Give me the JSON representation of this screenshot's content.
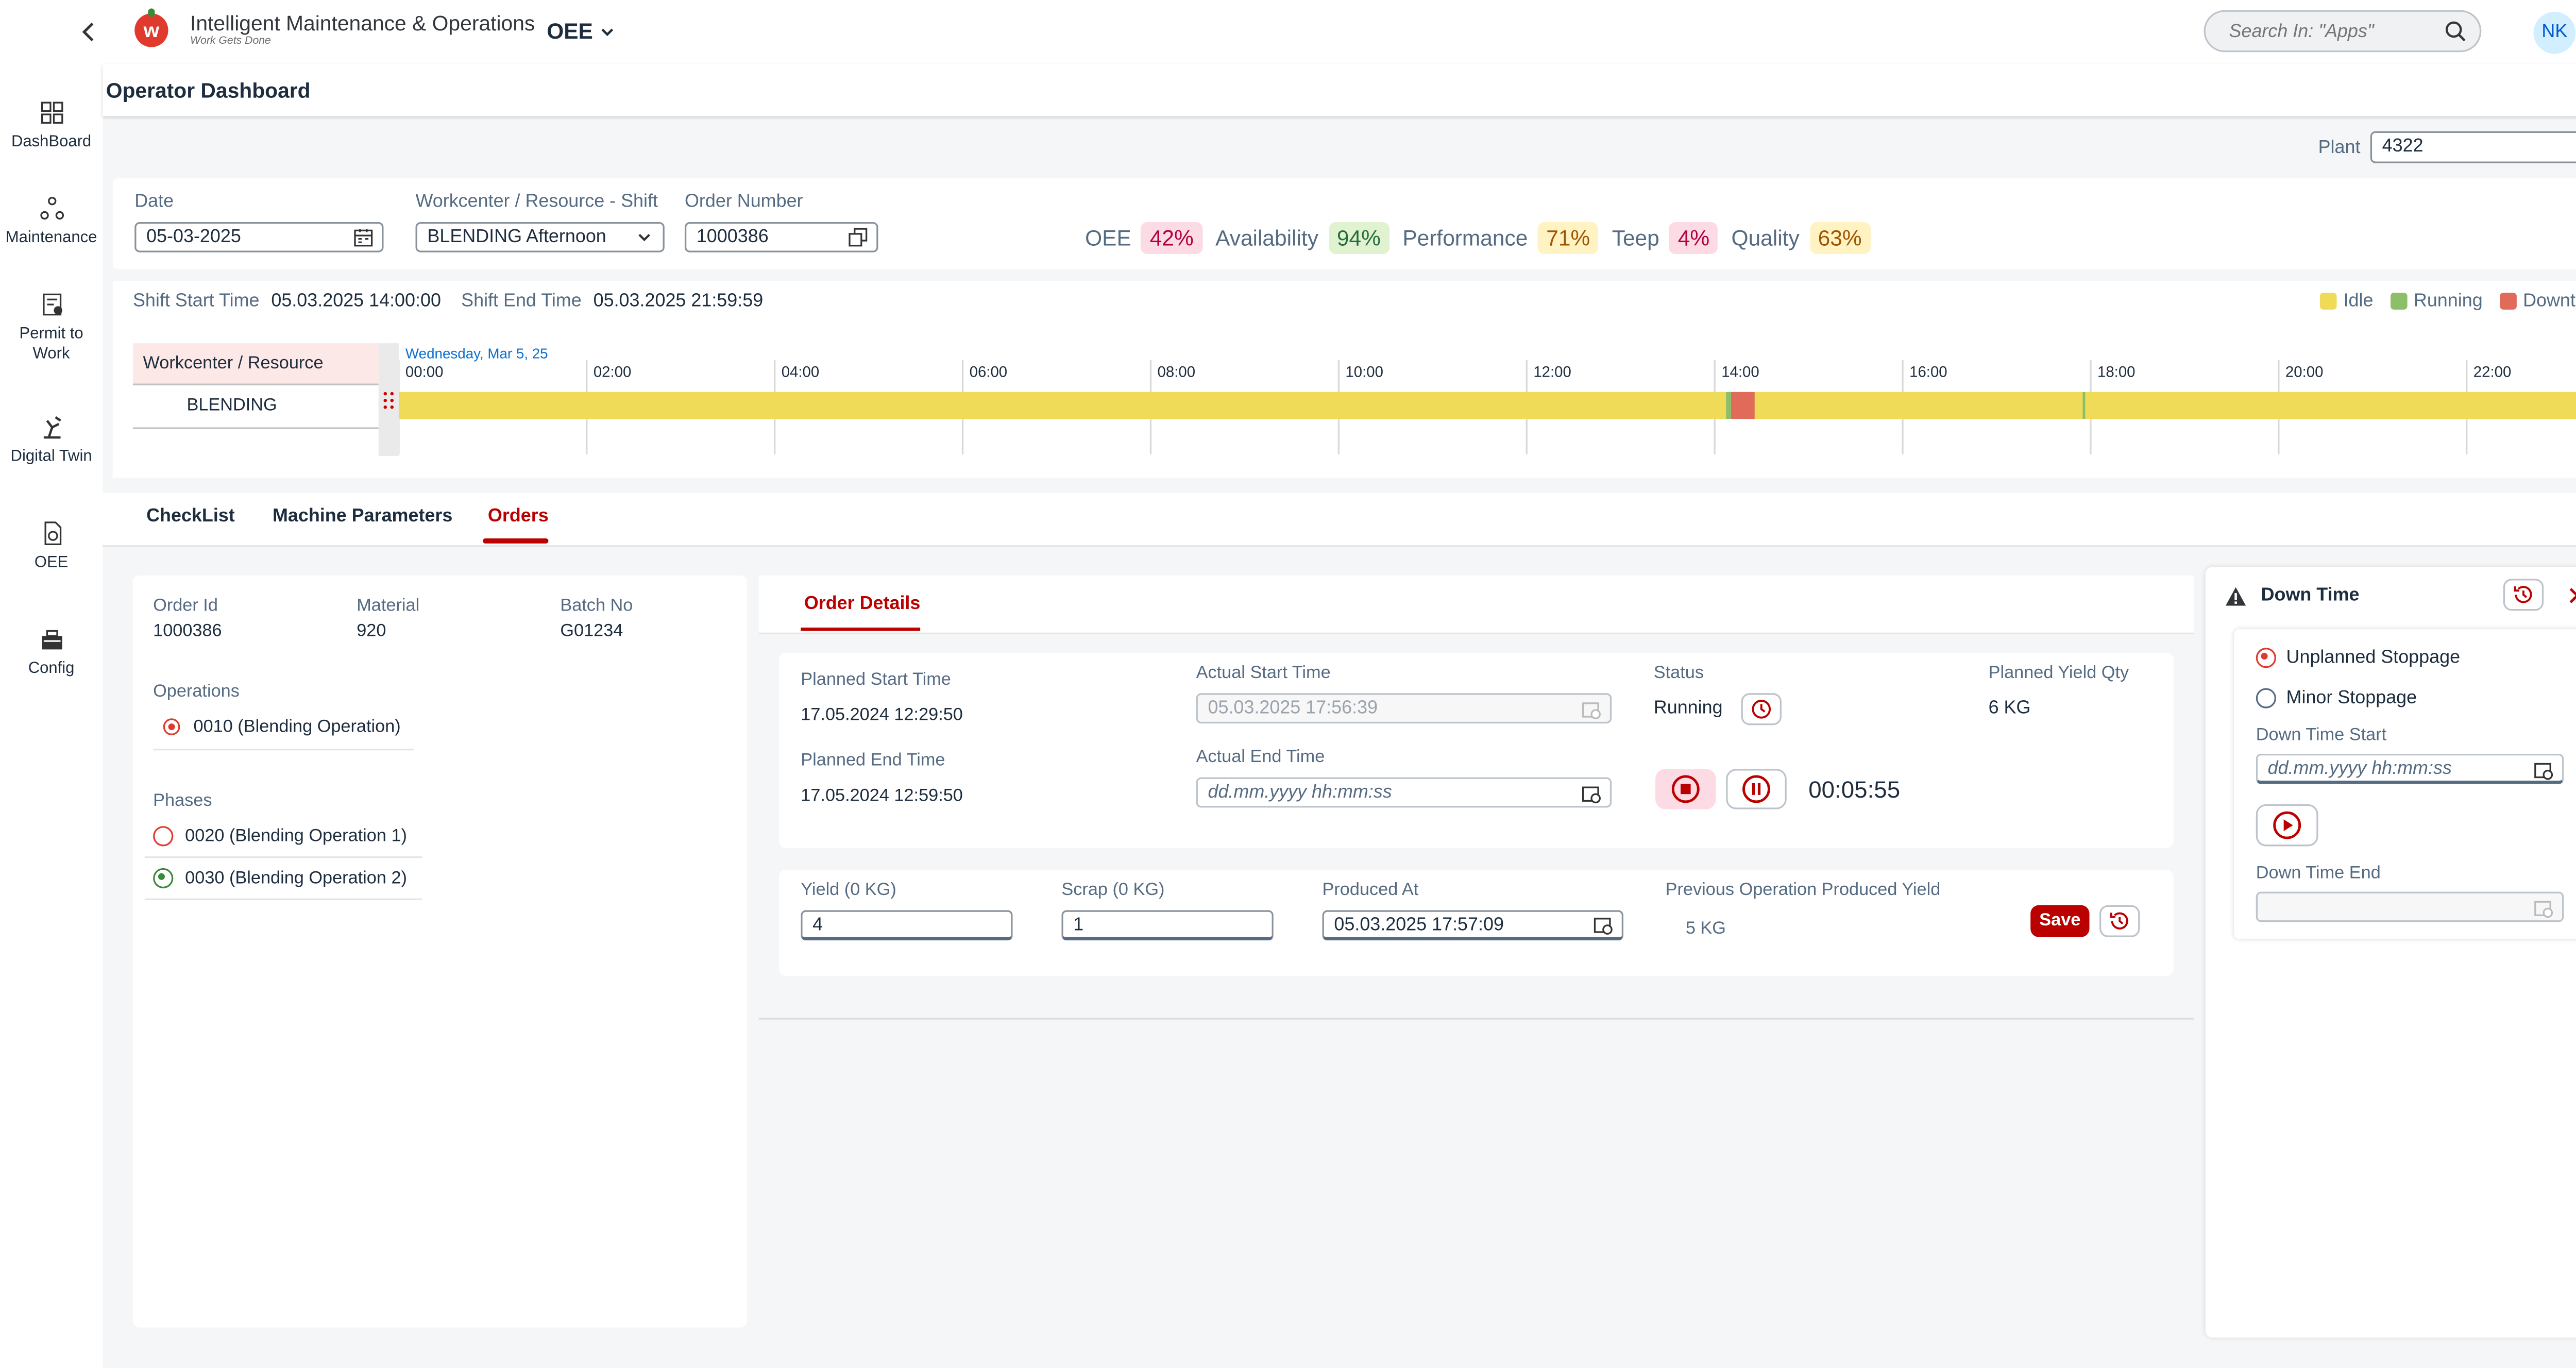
{
  "app": {
    "title": "Intelligent Maintenance & Operations",
    "subtitle": "Work Gets Done",
    "logo_letter": "w",
    "module": "OEE",
    "search_placeholder": "Search In: \"Apps\"",
    "user_initials": "NK"
  },
  "sidebar": {
    "items": [
      {
        "label": "DashBoard",
        "icon": "dashboard-icon"
      },
      {
        "label": "Maintenance",
        "icon": "maintenance-icon"
      },
      {
        "label": "Permit to Work",
        "icon": "permit-icon"
      },
      {
        "label": "Digital Twin",
        "icon": "digital-twin-icon"
      },
      {
        "label": "OEE",
        "icon": "oee-icon"
      },
      {
        "label": "Config",
        "icon": "config-icon"
      }
    ]
  },
  "page": {
    "title": "Operator Dashboard",
    "plant_label": "Plant",
    "plant_value": "4322"
  },
  "filters": {
    "date_label": "Date",
    "date_value": "05-03-2025",
    "workcenter_label": "Workcenter / Resource - Shift",
    "workcenter_value": "BLENDING Afternoon",
    "order_label": "Order Number",
    "order_value": "1000386"
  },
  "kpis": [
    {
      "label": "OEE",
      "value": "42%",
      "bg": "#fddbe5",
      "fg": "#b00040"
    },
    {
      "label": "Availability",
      "value": "94%",
      "bg": "#e0f2cf",
      "fg": "#256f3a"
    },
    {
      "label": "Performance",
      "value": "71%",
      "bg": "#fff3c4",
      "fg": "#a05400"
    },
    {
      "label": "Teep",
      "value": "4%",
      "bg": "#fddbe5",
      "fg": "#b00040"
    },
    {
      "label": "Quality",
      "value": "63%",
      "bg": "#fff3c4",
      "fg": "#a05400"
    }
  ],
  "shift": {
    "start_label": "Shift Start Time",
    "start_value": "05.03.2025 14:00:00",
    "end_label": "Shift End Time",
    "end_value": "05.03.2025 21:59:59"
  },
  "legend": [
    {
      "label": "Idle",
      "color": "#efdb57"
    },
    {
      "label": "Running",
      "color": "#8dbf6a"
    },
    {
      "label": "Downtime",
      "color": "#e06b5a"
    }
  ],
  "timeline": {
    "resource_header": "Workcenter / Resource",
    "resource_name": "BLENDING",
    "day_label": "Wednesday, Mar 5, 25",
    "hours": [
      "00:00",
      "02:00",
      "04:00",
      "06:00",
      "08:00",
      "10:00",
      "12:00",
      "14:00",
      "16:00",
      "18:00",
      "20:00",
      "22:00"
    ],
    "idle_color": "#efdb57",
    "running_color": "#8dbf6a",
    "downtime_color": "#e06b5a"
  },
  "tabs": [
    "CheckList",
    "Machine Parameters",
    "Orders"
  ],
  "active_tab": "Orders",
  "order_summary": {
    "order_id_label": "Order Id",
    "order_id": "1000386",
    "material_label": "Material",
    "material": "920",
    "batch_label": "Batch No",
    "batch": "G01234",
    "operations_label": "Operations",
    "operation": "0010 (Blending Operation)",
    "phases_label": "Phases",
    "phases": [
      "0020 (Blending Operation 1)",
      "0030 (Blending Operation 2)"
    ]
  },
  "order_details": {
    "tab": "Order Details",
    "planned_start_label": "Planned Start Time",
    "planned_start": "17.05.2024 12:29:50",
    "planned_end_label": "Planned End Time",
    "planned_end": "17.05.2024 12:59:50",
    "actual_start_label": "Actual Start Time",
    "actual_start": "05.03.2025 17:56:39",
    "actual_end_label": "Actual End Time",
    "actual_end_placeholder": "dd.mm.yyyy hh:mm:ss",
    "status_label": "Status",
    "status": "Running",
    "timer": "00:05:55",
    "planned_yield_label": "Planned Yield Qty",
    "planned_yield": "6 KG"
  },
  "production": {
    "yield_label": "Yield (0 KG)",
    "yield_value": "4",
    "scrap_label": "Scrap (0 KG)",
    "scrap_value": "1",
    "produced_at_label": "Produced At",
    "produced_at": "05.03.2025 17:57:09",
    "prev_yield_label": "Previous Operation Produced Yield",
    "prev_yield": "5 KG",
    "save_label": "Save"
  },
  "downtime": {
    "title": "Down Time",
    "unplanned": "Unplanned Stoppage",
    "minor": "Minor Stoppage",
    "start_label": "Down Time Start",
    "start_placeholder": "dd.mm.yyyy hh:mm:ss",
    "end_label": "Down Time End"
  }
}
